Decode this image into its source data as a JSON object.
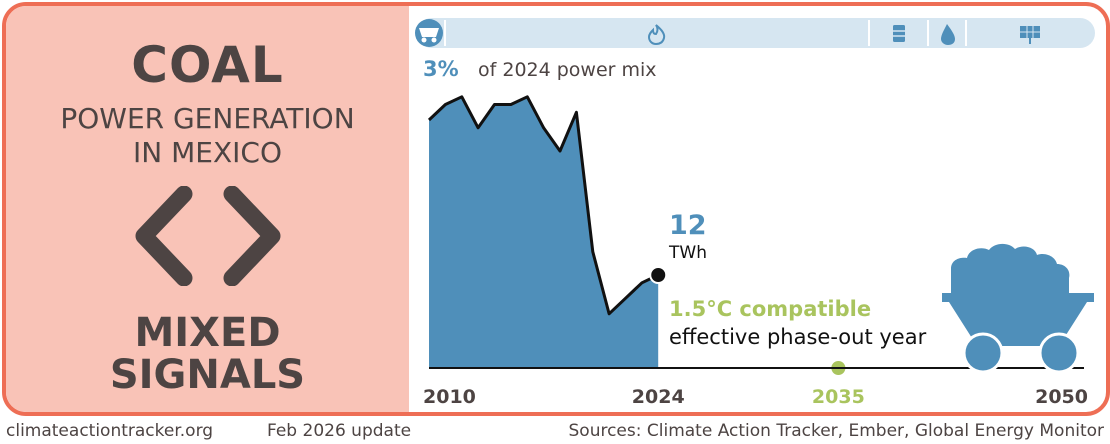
{
  "title": "COAL",
  "subtitle_lines": [
    "POWER GENERATION",
    "IN MEXICO"
  ],
  "status_lines": [
    "MIXED",
    "SIGNALS"
  ],
  "status_icon": "diverging-arrows-icon",
  "fuel_icons": [
    "coal-cart-icon",
    "gas-flame-icon",
    "oil-barrel-icon",
    "hydro-drop-icon",
    "solar-panel-icon"
  ],
  "colors": {
    "accent": "#ee6e55",
    "panel": "#f9c3b7",
    "area": "#4f8fba",
    "iconbar": "#d6e6f1",
    "text": "#4d4443",
    "green": "#a9c45e"
  },
  "share": {
    "value": "3%",
    "label": "of 2024 power mix"
  },
  "latest": {
    "value": "12",
    "unit": "TWh"
  },
  "target": {
    "line1": "1.5°C compatible",
    "line2": "effective phase-out year",
    "year": 2035
  },
  "footer": {
    "site": "climateactiontracker.org",
    "update": "Feb 2026 update",
    "sources": "Sources: Climate Action Tracker, Ember, Global Energy Monitor"
  },
  "chart_data": {
    "type": "area",
    "title": "Coal power generation in Mexico",
    "unit": "TWh",
    "x": [
      2010,
      2011,
      2012,
      2013,
      2014,
      2015,
      2016,
      2017,
      2018,
      2019,
      2020,
      2021,
      2022,
      2023,
      2024
    ],
    "values": [
      32,
      34,
      35,
      31,
      34,
      34,
      35,
      31,
      28,
      33,
      15,
      7,
      9,
      11,
      12
    ],
    "xlim": [
      2010,
      2050
    ],
    "ylim": [
      0,
      40
    ],
    "tick_labels": [
      {
        "year": 2010,
        "label": "2010"
      },
      {
        "year": 2024,
        "label": "2024"
      },
      {
        "year": 2035,
        "label": "2035",
        "highlight": true
      },
      {
        "year": 2050,
        "label": "2050"
      }
    ],
    "highlight_point": {
      "year": 2024,
      "value": 12
    },
    "phaseout_year": 2035
  }
}
